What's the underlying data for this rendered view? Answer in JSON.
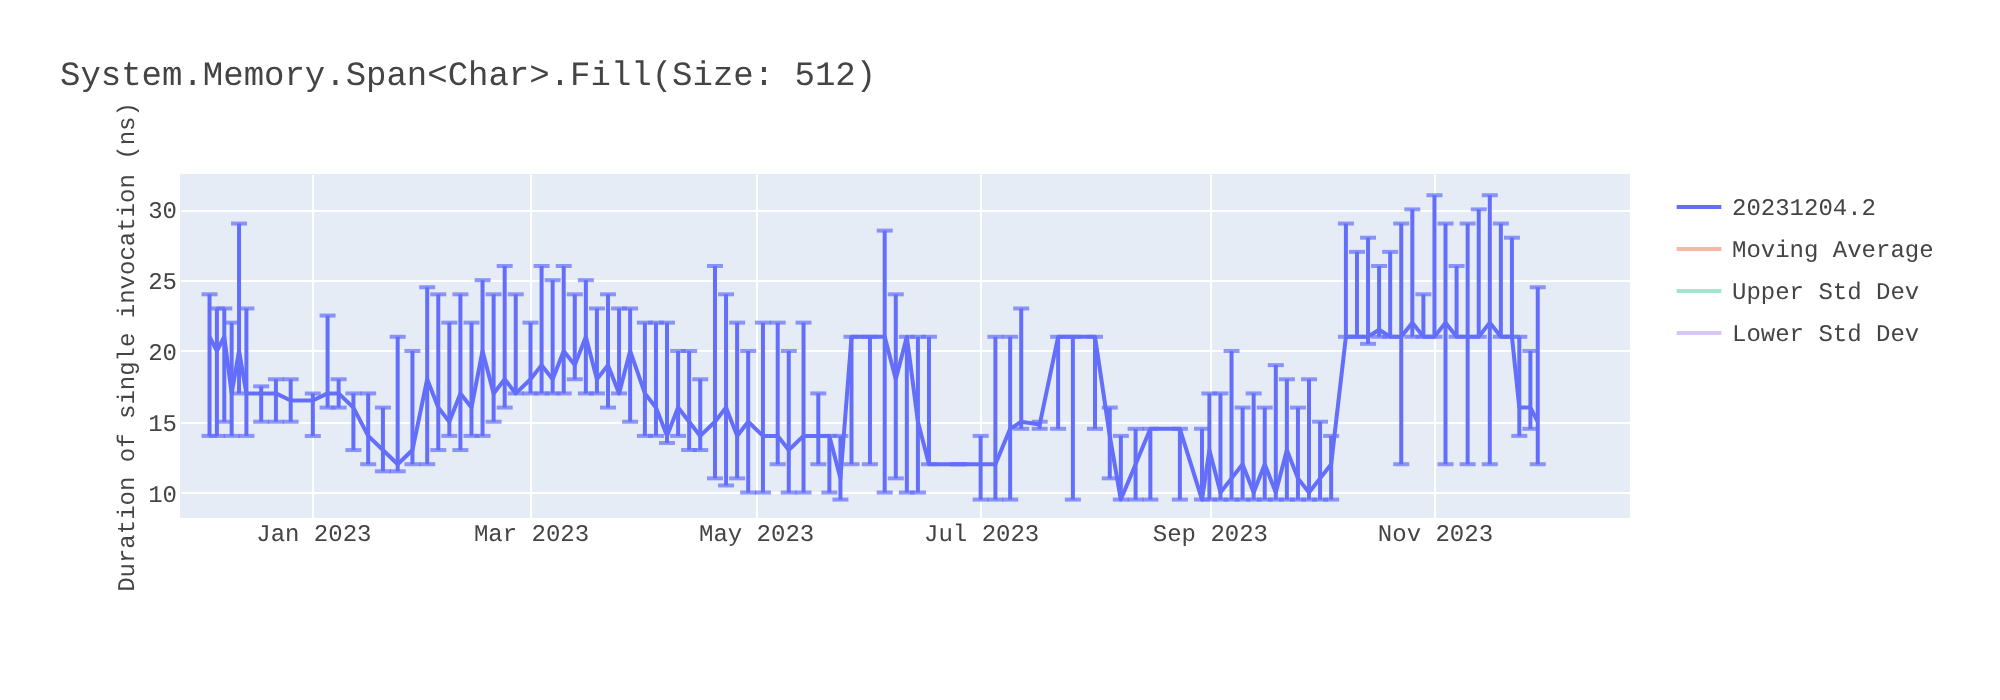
{
  "chart_data": {
    "type": "line",
    "title": "System.Memory.Span<Char>.Fill(Size: 512)",
    "ylabel": "Duration of single invocation (ns)",
    "x": [
      "2022-12-04",
      "2022-12-06",
      "2022-12-08",
      "2022-12-10",
      "2022-12-12",
      "2022-12-14",
      "2022-12-18",
      "2022-12-22",
      "2022-12-26",
      "2023-01-01",
      "2023-01-05",
      "2023-01-08",
      "2023-01-12",
      "2023-01-16",
      "2023-01-20",
      "2023-01-24",
      "2023-01-28",
      "2023-02-01",
      "2023-02-04",
      "2023-02-07",
      "2023-02-10",
      "2023-02-13",
      "2023-02-16",
      "2023-02-19",
      "2023-02-22",
      "2023-02-25",
      "2023-03-01",
      "2023-03-04",
      "2023-03-07",
      "2023-03-10",
      "2023-03-13",
      "2023-03-16",
      "2023-03-19",
      "2023-03-22",
      "2023-03-25",
      "2023-03-28",
      "2023-04-01",
      "2023-04-04",
      "2023-04-07",
      "2023-04-10",
      "2023-04-13",
      "2023-04-16",
      "2023-04-20",
      "2023-04-23",
      "2023-04-26",
      "2023-04-29",
      "2023-05-03",
      "2023-05-07",
      "2023-05-10",
      "2023-05-14",
      "2023-05-18",
      "2023-05-21",
      "2023-05-24",
      "2023-05-27",
      "2023-06-01",
      "2023-06-05",
      "2023-06-08",
      "2023-06-11",
      "2023-06-14",
      "2023-06-17",
      "2023-06-25",
      "2023-07-01",
      "2023-07-05",
      "2023-07-09",
      "2023-07-12",
      "2023-07-17",
      "2023-07-22",
      "2023-07-26",
      "2023-08-01",
      "2023-08-05",
      "2023-08-08",
      "2023-08-12",
      "2023-08-16",
      "2023-08-24",
      "2023-08-30",
      "2023-09-01",
      "2023-09-04",
      "2023-09-07",
      "2023-09-10",
      "2023-09-13",
      "2023-09-16",
      "2023-09-19",
      "2023-09-22",
      "2023-09-25",
      "2023-09-28",
      "2023-10-01",
      "2023-10-04",
      "2023-10-08",
      "2023-10-11",
      "2023-10-14",
      "2023-10-17",
      "2023-10-20",
      "2023-10-23",
      "2023-10-26",
      "2023-10-29",
      "2023-11-01",
      "2023-11-04",
      "2023-11-07",
      "2023-11-10",
      "2023-11-13",
      "2023-11-16",
      "2023-11-19",
      "2023-11-22",
      "2023-11-24",
      "2023-11-27",
      "2023-11-29"
    ],
    "series": [
      {
        "name": "20231204.2",
        "color": "#636efa",
        "values": [
          21,
          20,
          21,
          17,
          20,
          17,
          17,
          17,
          16.5,
          16.5,
          17,
          17,
          16,
          14,
          13,
          12,
          13,
          18,
          16,
          15,
          17,
          16,
          20,
          17,
          18,
          17,
          18,
          19,
          18,
          20,
          19,
          21,
          18,
          19,
          17,
          20,
          17,
          16,
          14,
          16,
          15,
          14,
          15,
          16,
          14,
          15,
          14,
          14,
          13,
          14,
          14,
          14,
          11,
          21,
          21,
          21,
          18,
          21,
          15,
          12,
          12,
          12,
          12,
          14.5,
          15,
          14.8,
          21,
          21,
          21,
          14,
          9.5,
          12,
          14.5,
          14.5,
          9.5,
          13,
          10,
          11,
          12,
          10,
          12,
          10,
          13,
          11,
          10,
          11,
          12,
          21,
          21,
          21,
          21.5,
          21,
          21,
          22,
          21,
          21,
          22,
          21,
          21,
          21,
          22,
          21,
          21,
          16,
          16,
          15
        ],
        "errors": [
          [
            14,
            24
          ],
          [
            14,
            23
          ],
          [
            15,
            23
          ],
          [
            14,
            22
          ],
          [
            17,
            29
          ],
          [
            14,
            23
          ],
          [
            15,
            17.5
          ],
          [
            15,
            18
          ],
          [
            15,
            18
          ],
          [
            14,
            17
          ],
          [
            16,
            22.5
          ],
          [
            16,
            18
          ],
          [
            13,
            17
          ],
          [
            12,
            17
          ],
          [
            11.5,
            16
          ],
          [
            11.5,
            21
          ],
          [
            12,
            20
          ],
          [
            12,
            24.5
          ],
          [
            13,
            24
          ],
          [
            14,
            22
          ],
          [
            13,
            24
          ],
          [
            14,
            22
          ],
          [
            14,
            25
          ],
          [
            15,
            24
          ],
          [
            16,
            26
          ],
          [
            17,
            24
          ],
          [
            17,
            22
          ],
          [
            17,
            26
          ],
          [
            17,
            25
          ],
          [
            17,
            26
          ],
          [
            18,
            24
          ],
          [
            17,
            25
          ],
          [
            17,
            23
          ],
          [
            16,
            24
          ],
          [
            17,
            23
          ],
          [
            15,
            23
          ],
          [
            14,
            22
          ],
          [
            14,
            22
          ],
          [
            13.5,
            22
          ],
          [
            14,
            20
          ],
          [
            13,
            20
          ],
          [
            13,
            18
          ],
          [
            11,
            26
          ],
          [
            10.5,
            24
          ],
          [
            11,
            22
          ],
          [
            10,
            20
          ],
          [
            10,
            22
          ],
          [
            12,
            22
          ],
          [
            10,
            20
          ],
          [
            10,
            22
          ],
          [
            12,
            17
          ],
          [
            10,
            14
          ],
          [
            9.5,
            14
          ],
          [
            12,
            21
          ],
          [
            12,
            21
          ],
          [
            10,
            28.5
          ],
          [
            11,
            24
          ],
          [
            10,
            21
          ],
          [
            10,
            21
          ],
          [
            12,
            21
          ],
          [
            12,
            12
          ],
          [
            9.5,
            14
          ],
          [
            9.5,
            21
          ],
          [
            9.5,
            21
          ],
          [
            14.5,
            23
          ],
          [
            14.5,
            15
          ],
          [
            14.5,
            21
          ],
          [
            9.5,
            21
          ],
          [
            14.5,
            21
          ],
          [
            11,
            16
          ],
          [
            9.5,
            14
          ],
          [
            9.5,
            14.5
          ],
          [
            9.5,
            14.5
          ],
          [
            9.5,
            14.5
          ],
          [
            9.5,
            14.5
          ],
          [
            9.5,
            17
          ],
          [
            9.5,
            17
          ],
          [
            9.5,
            20
          ],
          [
            9.5,
            16
          ],
          [
            9.5,
            17
          ],
          [
            9.5,
            16
          ],
          [
            9.5,
            19
          ],
          [
            9.5,
            18
          ],
          [
            9.5,
            16
          ],
          [
            9.5,
            18
          ],
          [
            9.5,
            15
          ],
          [
            9.5,
            14
          ],
          [
            21,
            29
          ],
          [
            21,
            27
          ],
          [
            20.5,
            28
          ],
          [
            21,
            26
          ],
          [
            21,
            27
          ],
          [
            12,
            29
          ],
          [
            21,
            30
          ],
          [
            21,
            24
          ],
          [
            21,
            31
          ],
          [
            12,
            29
          ],
          [
            21,
            26
          ],
          [
            12,
            29
          ],
          [
            21,
            30
          ],
          [
            12,
            31
          ],
          [
            21,
            29
          ],
          [
            21,
            28
          ],
          [
            14,
            21
          ],
          [
            14.5,
            20
          ],
          [
            12,
            24.5
          ]
        ]
      },
      {
        "name": "Moving Average",
        "color": "#f6b8a6",
        "values": [
          null,
          null,
          null,
          null,
          null,
          null,
          null,
          null,
          null,
          null,
          null,
          null,
          null,
          null,
          null,
          null,
          null,
          null,
          null,
          null,
          null,
          null,
          null,
          null,
          null,
          null,
          null,
          null,
          null,
          null,
          null,
          null,
          null,
          null,
          null,
          null,
          null,
          null,
          null,
          null,
          null,
          null,
          null,
          null,
          null,
          null,
          null,
          null,
          null,
          null,
          null,
          null,
          null,
          null,
          null,
          null,
          null,
          null,
          null,
          null,
          null,
          null,
          null,
          null,
          null,
          null,
          null,
          null,
          null,
          null,
          null,
          null,
          null,
          null,
          null,
          null,
          null,
          null,
          null,
          null,
          null,
          null,
          null,
          null,
          null,
          null,
          null,
          null,
          null,
          null,
          null,
          null,
          null,
          null,
          null,
          null,
          null,
          null,
          null,
          null,
          null,
          null,
          null,
          null,
          null,
          null
        ]
      },
      {
        "name": "Upper Std Dev",
        "color": "#9fe8cf",
        "values": [
          null,
          null,
          null,
          null,
          null,
          null,
          null,
          null,
          null,
          null,
          null,
          null,
          null,
          null,
          null,
          null,
          null,
          null,
          null,
          null,
          null,
          null,
          null,
          null,
          null,
          null,
          null,
          null,
          null,
          null,
          null,
          null,
          null,
          null,
          null,
          null,
          null,
          null,
          null,
          null,
          null,
          null,
          null,
          null,
          null,
          null,
          null,
          null,
          null,
          null,
          null,
          null,
          null,
          null,
          null,
          null,
          null,
          null,
          null,
          null,
          null,
          null,
          null,
          null,
          null,
          null,
          null,
          null,
          null,
          null,
          null,
          null,
          null,
          null,
          null,
          null,
          null,
          null,
          null,
          null,
          null,
          null,
          null,
          null,
          null,
          null,
          null,
          null,
          null,
          null,
          null,
          null,
          null,
          null,
          null,
          null,
          null,
          null,
          null,
          null,
          null,
          null,
          null,
          null,
          null,
          null
        ]
      },
      {
        "name": "Lower Std Dev",
        "color": "#d6c6f7",
        "values": [
          null,
          null,
          null,
          null,
          null,
          null,
          null,
          null,
          null,
          null,
          null,
          null,
          null,
          null,
          null,
          null,
          null,
          null,
          null,
          null,
          null,
          null,
          null,
          null,
          null,
          null,
          null,
          null,
          null,
          null,
          null,
          null,
          null,
          null,
          null,
          null,
          null,
          null,
          null,
          null,
          null,
          null,
          null,
          null,
          null,
          null,
          null,
          null,
          null,
          null,
          null,
          null,
          null,
          null,
          null,
          null,
          null,
          null,
          null,
          null,
          null,
          null,
          null,
          null,
          null,
          null,
          null,
          null,
          null,
          null,
          null,
          null,
          null,
          null,
          null,
          null,
          null,
          null,
          null,
          null,
          null,
          null,
          null,
          null,
          null,
          null,
          null,
          null,
          null,
          null,
          null,
          null,
          null,
          null,
          null,
          null,
          null,
          null,
          null,
          null,
          null,
          null,
          null,
          null,
          null,
          null
        ]
      }
    ],
    "xlim": [
      "2022-11-26",
      "2023-12-24"
    ],
    "xticks": [
      {
        "value": "2023-01-01",
        "label": "Jan 2023"
      },
      {
        "value": "2023-03-01",
        "label": "Mar 2023"
      },
      {
        "value": "2023-05-01",
        "label": "May 2023"
      },
      {
        "value": "2023-07-01",
        "label": "Jul 2023"
      },
      {
        "value": "2023-09-01",
        "label": "Sep 2023"
      },
      {
        "value": "2023-11-01",
        "label": "Nov 2023"
      }
    ],
    "ylim": [
      8.2,
      32.5
    ],
    "yticks": [
      10,
      15,
      20,
      25,
      30
    ],
    "grid": true,
    "legend": "top right",
    "marker": "none",
    "line_style": "solid"
  }
}
